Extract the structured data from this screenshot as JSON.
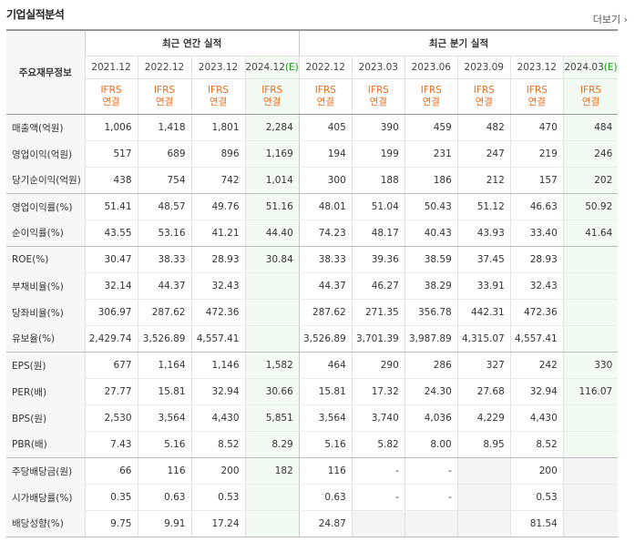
{
  "section_title": "기업실적분석",
  "more_label": "더보기",
  "row_header_label": "주요재무정보",
  "group_annual": "최근 연간 실적",
  "group_quarterly": "최근 분기 실적",
  "periods": [
    {
      "date": "2021.12",
      "est": ""
    },
    {
      "date": "2022.12",
      "est": ""
    },
    {
      "date": "2023.12",
      "est": ""
    },
    {
      "date": "2024.12",
      "est": "(E)"
    },
    {
      "date": "2022.12",
      "est": ""
    },
    {
      "date": "2023.03",
      "est": ""
    },
    {
      "date": "2023.06",
      "est": ""
    },
    {
      "date": "2023.09",
      "est": ""
    },
    {
      "date": "2023.12",
      "est": ""
    },
    {
      "date": "2024.03",
      "est": "(E)"
    }
  ],
  "standard_line1": "IFRS",
  "standard_line2": "연결",
  "rows": [
    {
      "label": "매출액(억원)",
      "values": [
        "1,006",
        "1,418",
        "1,801",
        "2,284",
        "405",
        "390",
        "459",
        "482",
        "470",
        "484"
      ]
    },
    {
      "label": "영업이익(억원)",
      "values": [
        "517",
        "689",
        "896",
        "1,169",
        "194",
        "199",
        "231",
        "247",
        "219",
        "246"
      ]
    },
    {
      "label": "당기순이익(억원)",
      "values": [
        "438",
        "754",
        "742",
        "1,014",
        "300",
        "188",
        "186",
        "212",
        "157",
        "202"
      ]
    },
    {
      "label": "영업이익률(%)",
      "values": [
        "51.41",
        "48.57",
        "49.76",
        "51.16",
        "48.01",
        "51.04",
        "50.43",
        "51.12",
        "46.63",
        "50.92"
      ]
    },
    {
      "label": "순이익률(%)",
      "values": [
        "43.55",
        "53.16",
        "41.21",
        "44.40",
        "74.23",
        "48.17",
        "40.43",
        "43.93",
        "33.40",
        "41.64"
      ]
    },
    {
      "label": "ROE(%)",
      "values": [
        "30.47",
        "38.33",
        "28.93",
        "30.84",
        "38.33",
        "39.36",
        "38.59",
        "37.45",
        "28.93",
        ""
      ]
    },
    {
      "label": "부채비율(%)",
      "values": [
        "32.14",
        "44.37",
        "32.43",
        "",
        "44.37",
        "46.27",
        "38.29",
        "33.91",
        "32.43",
        ""
      ]
    },
    {
      "label": "당좌비율(%)",
      "values": [
        "306.97",
        "287.62",
        "472.36",
        "",
        "287.62",
        "271.35",
        "356.78",
        "442.31",
        "472.36",
        ""
      ]
    },
    {
      "label": "유보율(%)",
      "values": [
        "2,429.74",
        "3,526.89",
        "4,557.41",
        "",
        "3,526.89",
        "3,701.39",
        "3,987.89",
        "4,315.07",
        "4,557.41",
        ""
      ]
    },
    {
      "label": "EPS(원)",
      "values": [
        "677",
        "1,164",
        "1,146",
        "1,582",
        "464",
        "290",
        "286",
        "327",
        "242",
        "330"
      ]
    },
    {
      "label": "PER(배)",
      "values": [
        "27.77",
        "15.81",
        "32.94",
        "30.66",
        "15.81",
        "17.32",
        "24.30",
        "27.68",
        "32.94",
        "116.07"
      ]
    },
    {
      "label": "BPS(원)",
      "values": [
        "2,530",
        "3,564",
        "4,430",
        "5,851",
        "3,564",
        "3,740",
        "4,036",
        "4,229",
        "4,430",
        ""
      ]
    },
    {
      "label": "PBR(배)",
      "values": [
        "7.43",
        "5.16",
        "8.52",
        "8.29",
        "5.16",
        "5.82",
        "8.00",
        "8.95",
        "8.52",
        ""
      ]
    },
    {
      "label": "주당배당금(원)",
      "values": [
        "66",
        "116",
        "200",
        "182",
        "116",
        "-",
        "-",
        "",
        "200",
        ""
      ]
    },
    {
      "label": "시가배당률(%)",
      "values": [
        "0.35",
        "0.63",
        "0.53",
        "",
        "0.63",
        "-",
        "-",
        "",
        "0.53",
        ""
      ]
    },
    {
      "label": "배당성향(%)",
      "values": [
        "9.75",
        "9.91",
        "17.24",
        "",
        "24.87",
        "",
        "",
        "",
        "81.54",
        ""
      ]
    }
  ]
}
